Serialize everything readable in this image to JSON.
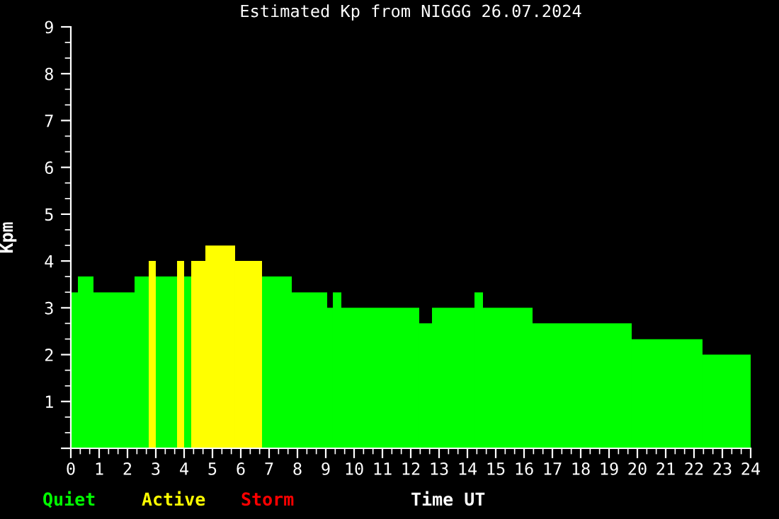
{
  "chart_data": {
    "type": "histogram",
    "title": "Estimated Kp from NIGGG 26.07.2024",
    "xlabel": "Time UT",
    "ylabel": "Kpm",
    "bins": [
      0,
      0.25,
      0.8,
      2.25,
      2.75,
      3.0,
      3.75,
      4.0,
      4.25,
      4.75,
      5.8,
      6.75,
      7.8,
      9.05,
      9.25,
      9.55,
      12.3,
      12.75,
      14.25,
      14.55,
      16.3,
      19.8,
      22.3,
      24
    ],
    "series": [
      {
        "name": "Quiet",
        "color": "#00ff00",
        "values": [
          3.33,
          3.67,
          3.33,
          3.67,
          null,
          3.67,
          null,
          3.67,
          null,
          null,
          null,
          3.67,
          3.33,
          3.0,
          3.33,
          3.0,
          2.67,
          3.0,
          3.33,
          3.0,
          2.67,
          2.33,
          2.0
        ]
      },
      {
        "name": "Active",
        "color": "#ffff00",
        "values": [
          null,
          null,
          null,
          null,
          4.0,
          null,
          4.0,
          null,
          4.0,
          4.33,
          4.0,
          null,
          null,
          null,
          null,
          null,
          null,
          null,
          null,
          null,
          null,
          null,
          null
        ]
      }
    ],
    "annotations": [
      "Storm"
    ],
    "xlim": [
      0,
      24
    ],
    "xticks": [
      0,
      1,
      2,
      3,
      4,
      5,
      6,
      7,
      8,
      9,
      10,
      11,
      12,
      13,
      14,
      15,
      16,
      17,
      18,
      19,
      20,
      21,
      22,
      23,
      24
    ],
    "ylim": [
      0,
      9
    ],
    "yticks": [
      {
        "value": 0,
        "label": null
      },
      1,
      2,
      3,
      4,
      5,
      6,
      7,
      8,
      9
    ],
    "grid": false,
    "legend": "bottom left"
  }
}
